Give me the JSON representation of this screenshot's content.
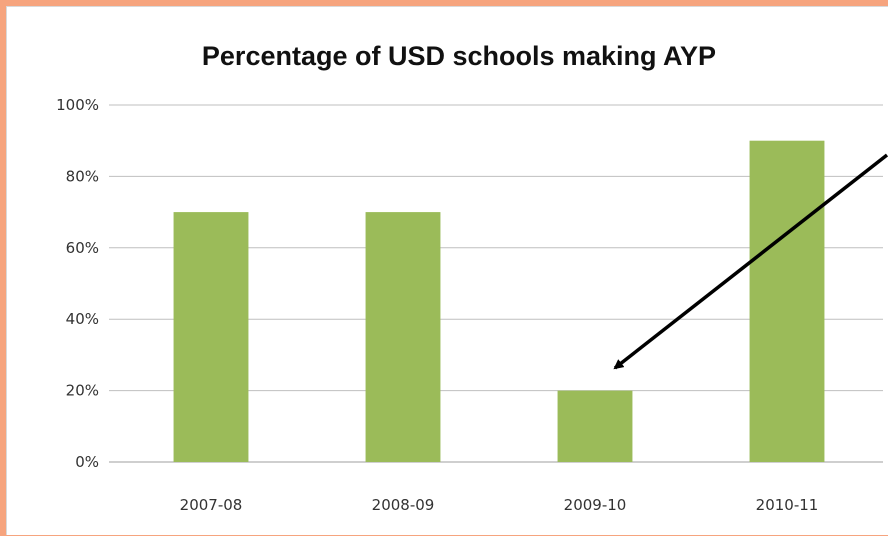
{
  "chart_data": {
    "type": "bar",
    "title": "Percentage of USD schools making AYP",
    "xlabel": "",
    "ylabel": "",
    "categories": [
      "2007-08",
      "2008-09",
      "2009-10",
      "2010-11"
    ],
    "values": [
      70,
      70,
      20,
      90
    ],
    "ylim": [
      0,
      100
    ],
    "yticks": [
      0,
      20,
      40,
      60,
      80,
      100
    ],
    "ytick_labels": [
      "0%",
      "20%",
      "40%",
      "60%",
      "80%",
      "100%"
    ],
    "grid": true,
    "legend": "none",
    "annotation": "arrow pointing to 2009-10 bar"
  },
  "colors": {
    "bar": "#9bbb59",
    "grid": "#bfbfbf",
    "frame": "#f6a47e",
    "arrow": "#000000"
  }
}
